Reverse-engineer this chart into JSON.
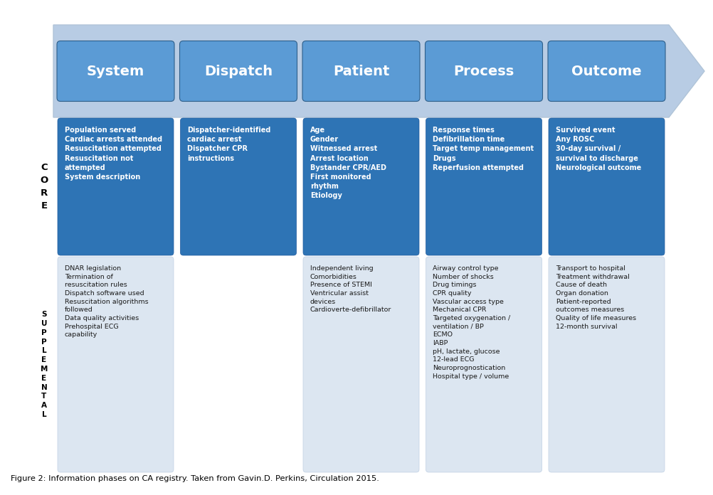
{
  "phases": [
    "System",
    "Dispatch",
    "Patient",
    "Process",
    "Outcome"
  ],
  "arrow_color": "#b8cce4",
  "arrow_edge_color": "#b0c4d8",
  "button_color": "#5b9bd5",
  "button_edge_color": "#2e5f8a",
  "box_fill_core": "#2e74b5",
  "box_fill_supp_has": "#dce6f1",
  "box_text_core": "#ffffff",
  "box_text_supp": "#1a1a1a",
  "core_texts": [
    "Population served\nCardiac arrests attended\nResuscitation attempted\nResuscitation not\nattempted\nSystem description",
    "Dispatcher-identified\ncardiac arrest\nDispatcher CPR\ninstructions",
    "Age\nGender\nWitnessed arrest\nArrest location\nBystander CPR/AED\nFirst monitored\nrhythm\nEtiology",
    "Response times\nDefibrillation time\nTarget temp management\nDrugs\nReperfusion attempted",
    "Survived event\nAny ROSC\n30-day survival /\nsurvival to discharge\nNeurological outcome"
  ],
  "supp_texts": [
    "DNAR legislation\nTermination of\nresuscitation rules\nDispatch software used\nResuscitation algorithms\nfollowed\nData quality activities\nPrehospital ECG\ncapability",
    "",
    "Independent living\nComorbidities\nPresence of STEMI\nVentricular assist\ndevices\nCardioverte-defibrillator",
    "Airway control type\nNumber of shocks\nDrug timings\nCPR quality\nVascular access type\nMechanical CPR\nTargeted oxygenation /\nventilation / BP\nECMO\nIABP\npH, lactate, glucose\n12-lead ECG\nNeuroprognostication\nHospital type / volume",
    "Transport to hospital\nTreatment withdrawal\nCause of death\nOrgan donation\nPatient-reported\noutcomes measures\nQuality of life measures\n12-month survival"
  ],
  "figure_caption": "Figure 2: Information phases on CA registry. Taken from Gavin.D. Perkins, Circulation 2015.",
  "bg_color": "#ffffff"
}
